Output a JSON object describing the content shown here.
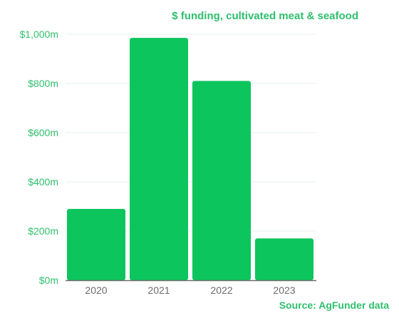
{
  "chart_data": {
    "type": "bar",
    "title": "$ funding, cultivated meat & seafood",
    "xlabel": "",
    "ylabel": "",
    "categories": [
      "2020",
      "2021",
      "2022",
      "2023"
    ],
    "values": [
      290,
      985,
      810,
      170
    ],
    "ylim": [
      0,
      1000
    ],
    "yticks": [
      0,
      200,
      400,
      600,
      800,
      1000
    ],
    "ytick_labels": [
      "$0m",
      "$200m",
      "$400m",
      "$600m",
      "$800m",
      "$1,000m"
    ],
    "grid": true,
    "legend": "none",
    "source": "Source: AgFunder data"
  },
  "colors": {
    "bar": "#0cc55c",
    "text": "#2fbf6d",
    "grid": "#e6f1ee",
    "axis": "#6b6b6b",
    "background": "#ffffff"
  }
}
